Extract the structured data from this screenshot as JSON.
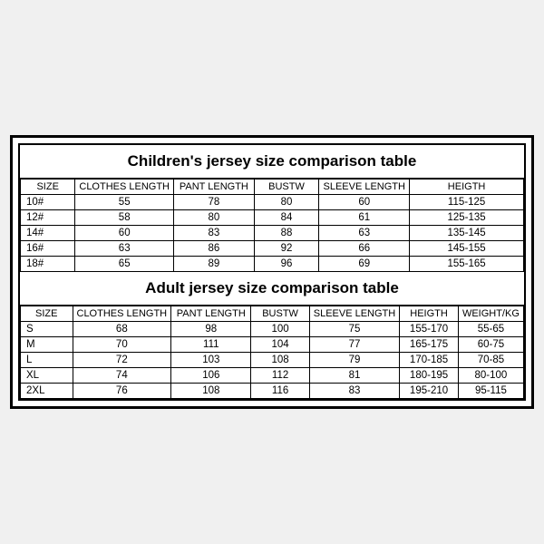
{
  "children": {
    "title": "Children's jersey size comparison table",
    "headers": [
      "SIZE",
      "CLOTHES LENGTH",
      "PANT LENGTH",
      "BUSTW",
      "SLEEVE LENGTH",
      "HEIGTH"
    ],
    "rows": [
      [
        "10#",
        "55",
        "78",
        "80",
        "60",
        "115-125"
      ],
      [
        "12#",
        "58",
        "80",
        "84",
        "61",
        "125-135"
      ],
      [
        "14#",
        "60",
        "83",
        "88",
        "63",
        "135-145"
      ],
      [
        "16#",
        "63",
        "86",
        "92",
        "66",
        "145-155"
      ],
      [
        "18#",
        "65",
        "89",
        "96",
        "69",
        "155-165"
      ]
    ]
  },
  "adult": {
    "title": "Adult jersey size comparison table",
    "headers": [
      "SIZE",
      "CLOTHES LENGTH",
      "PANT LENGTH",
      "BUSTW",
      "SLEEVE LENGTH",
      "HEIGTH",
      "WEIGHT/KG"
    ],
    "rows": [
      [
        "S",
        "68",
        "98",
        "100",
        "75",
        "155-170",
        "55-65"
      ],
      [
        "M",
        "70",
        "111",
        "104",
        "77",
        "165-175",
        "60-75"
      ],
      [
        "L",
        "72",
        "103",
        "108",
        "79",
        "170-185",
        "70-85"
      ],
      [
        "XL",
        "74",
        "106",
        "112",
        "81",
        "180-195",
        "80-100"
      ],
      [
        "2XL",
        "76",
        "108",
        "116",
        "83",
        "195-210",
        "95-115"
      ]
    ]
  },
  "style": {
    "border_color": "#000000",
    "background": "#ffffff",
    "title_fontsize": 17,
    "cell_fontsize": 11.5
  }
}
